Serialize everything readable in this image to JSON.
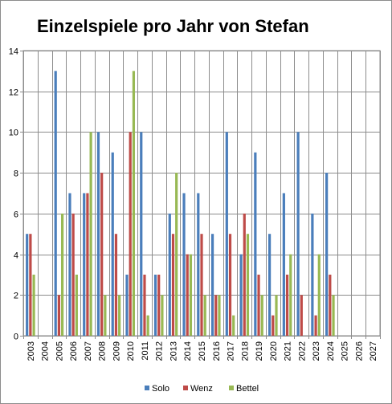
{
  "chart_data": {
    "type": "bar",
    "title": "Einzelspiele pro Jahr von Stefan",
    "xlabel": "",
    "ylabel": "",
    "ylim": [
      0,
      14
    ],
    "yticks": [
      0,
      2,
      4,
      6,
      8,
      10,
      12,
      14
    ],
    "grid": "horizontal",
    "legend": "bottom",
    "categories": [
      "2003",
      "2004",
      "2005",
      "2006",
      "2007",
      "2008",
      "2009",
      "2010",
      "2011",
      "2012",
      "2013",
      "2014",
      "2015",
      "2016",
      "2017",
      "2018",
      "2019",
      "2020",
      "2021",
      "2022",
      "2023",
      "2024",
      "2025",
      "2026",
      "2027"
    ],
    "series": [
      {
        "name": "Solo",
        "color": "#4a7ebb",
        "values": [
          5,
          0,
          13,
          7,
          7,
          10,
          9,
          3,
          10,
          3,
          6,
          7,
          7,
          5,
          10,
          4,
          9,
          5,
          7,
          10,
          6,
          8,
          0,
          0,
          0
        ]
      },
      {
        "name": "Wenz",
        "color": "#be4b48",
        "values": [
          5,
          0,
          2,
          6,
          7,
          8,
          5,
          10,
          3,
          3,
          5,
          4,
          5,
          2,
          5,
          6,
          3,
          1,
          3,
          2,
          1,
          3,
          0,
          0,
          0
        ]
      },
      {
        "name": "Bettel",
        "color": "#98b954",
        "values": [
          3,
          0,
          6,
          3,
          10,
          2,
          2,
          13,
          1,
          2,
          8,
          4,
          2,
          2,
          1,
          5,
          2,
          2,
          4,
          0,
          4,
          2,
          0,
          0,
          0
        ]
      }
    ]
  }
}
